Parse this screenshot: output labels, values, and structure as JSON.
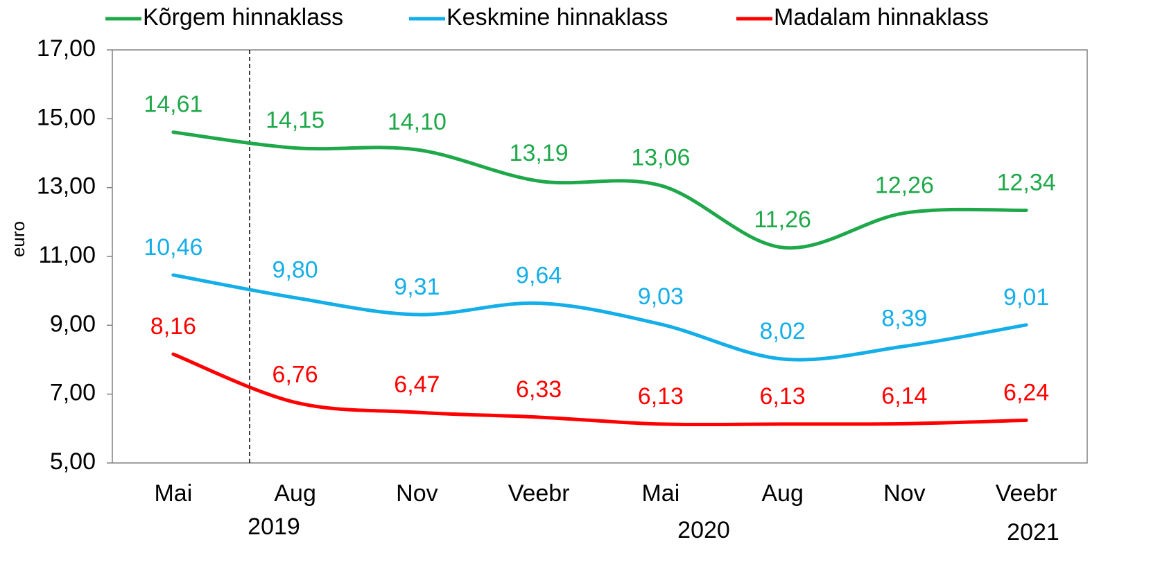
{
  "chart_data": {
    "type": "line",
    "y_label": "euro",
    "categories": [
      "Mai",
      "Aug",
      "Nov",
      "Veebr",
      "Mai",
      "Aug",
      "Nov",
      "Veebr"
    ],
    "years": [
      "2019",
      "2020",
      "2021"
    ],
    "ylim": [
      5,
      17
    ],
    "yticks": [
      {
        "value": 5,
        "label": "5,00"
      },
      {
        "value": 7,
        "label": "7,00"
      },
      {
        "value": 9,
        "label": "9,00"
      },
      {
        "value": 11,
        "label": "11,00"
      },
      {
        "value": 13,
        "label": "13,00"
      },
      {
        "value": 15,
        "label": "15,00"
      },
      {
        "value": 17,
        "label": "17,00"
      }
    ],
    "series": [
      {
        "name": "Kõrgem hinnaklass",
        "color": "#1fa84a",
        "values": [
          14.61,
          14.15,
          14.1,
          13.19,
          13.06,
          11.26,
          12.26,
          12.34
        ],
        "value_labels": [
          "14,61",
          "14,15",
          "14,10",
          "13,19",
          "13,06",
          "11,26",
          "12,26",
          "12,34"
        ]
      },
      {
        "name": "Keskmine hinnaklass",
        "color": "#14aee8",
        "values": [
          10.46,
          9.8,
          9.31,
          9.64,
          9.03,
          8.02,
          8.39,
          9.01
        ],
        "value_labels": [
          "10,46",
          "9,80",
          "9,31",
          "9,64",
          "9,03",
          "8,02",
          "8,39",
          "9,01"
        ]
      },
      {
        "name": "Madalam hinnaklass",
        "color": "#ff0000",
        "values": [
          8.16,
          6.76,
          6.47,
          6.33,
          6.13,
          6.13,
          6.14,
          6.24
        ],
        "value_labels": [
          "8,16",
          "6,76",
          "6,47",
          "6,33",
          "6,13",
          "6,13",
          "6,14",
          "6,24"
        ]
      }
    ]
  }
}
